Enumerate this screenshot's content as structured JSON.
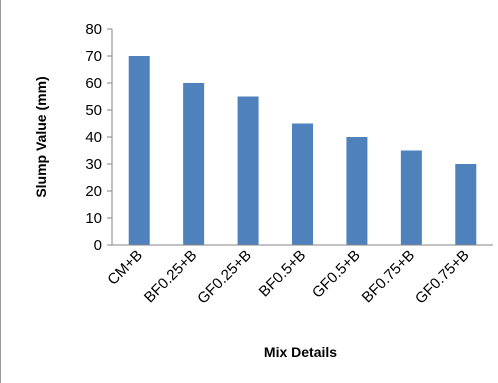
{
  "chart_data": {
    "type": "bar",
    "title": "",
    "xlabel": "Mix Details",
    "ylabel": "Slump Value (mm)",
    "categories": [
      "CM+B",
      "BF0.25+B",
      "GF0.25+B",
      "BF0.5+B",
      "GF0.5+B",
      "BF0.75+B",
      "GF0.75+B"
    ],
    "values": [
      70,
      60,
      55,
      45,
      40,
      35,
      30
    ],
    "ylim": [
      0,
      80
    ],
    "yticks": [
      "0",
      "10",
      "20",
      "30",
      "40",
      "50",
      "60",
      "70",
      "80"
    ],
    "grid": false,
    "legend": "none",
    "bar_color": "#4f81bd"
  }
}
